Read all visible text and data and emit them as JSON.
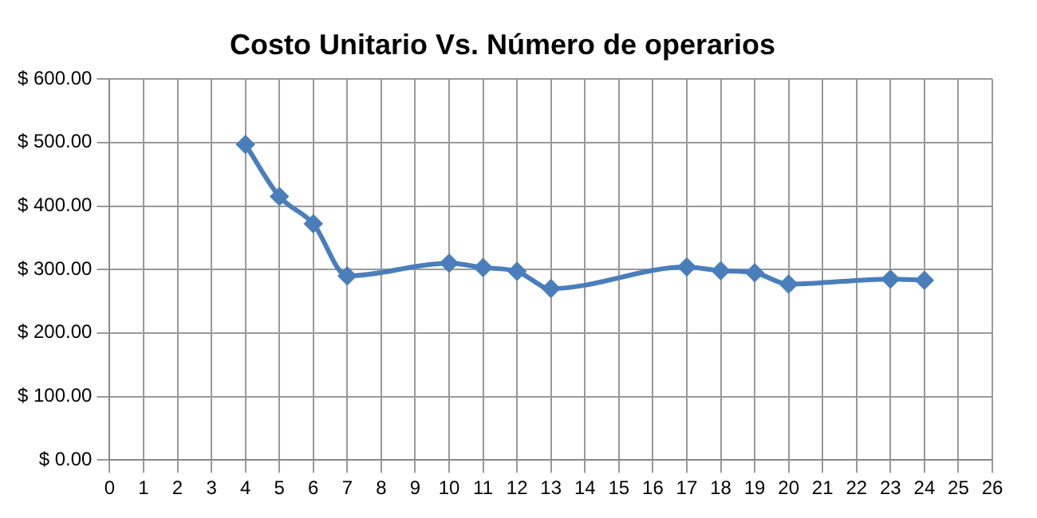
{
  "chart_data": {
    "type": "line",
    "title": "Costo Unitario Vs. Número de operarios",
    "x": [
      4,
      5,
      6,
      7,
      10,
      11,
      12,
      13,
      17,
      18,
      19,
      20,
      23,
      24
    ],
    "series": [
      {
        "color": "#4a7ebb",
        "values": [
          497,
          415,
          372,
          290,
          310,
          303,
          297,
          270,
          304,
          298,
          295,
          277,
          285,
          283
        ]
      }
    ],
    "xlim": [
      0,
      26
    ],
    "xticks": [
      0,
      1,
      2,
      3,
      4,
      5,
      6,
      7,
      8,
      9,
      10,
      11,
      12,
      13,
      14,
      15,
      16,
      17,
      18,
      19,
      20,
      21,
      22,
      23,
      24,
      25,
      26
    ],
    "ylim": [
      0,
      600
    ],
    "yticks": [
      {
        "value": 0,
        "label": "$ 0.00"
      },
      {
        "value": 100,
        "label": "$ 100.00"
      },
      {
        "value": 200,
        "label": "$ 200.00"
      },
      {
        "value": 300,
        "label": "$ 300.00"
      },
      {
        "value": 400,
        "label": "$ 400.00"
      },
      {
        "value": 500,
        "label": "$ 500.00"
      },
      {
        "value": 600,
        "label": "$ 600.00"
      }
    ],
    "grid": true,
    "legend": false,
    "marker": "diamond",
    "line_style": "solid"
  }
}
